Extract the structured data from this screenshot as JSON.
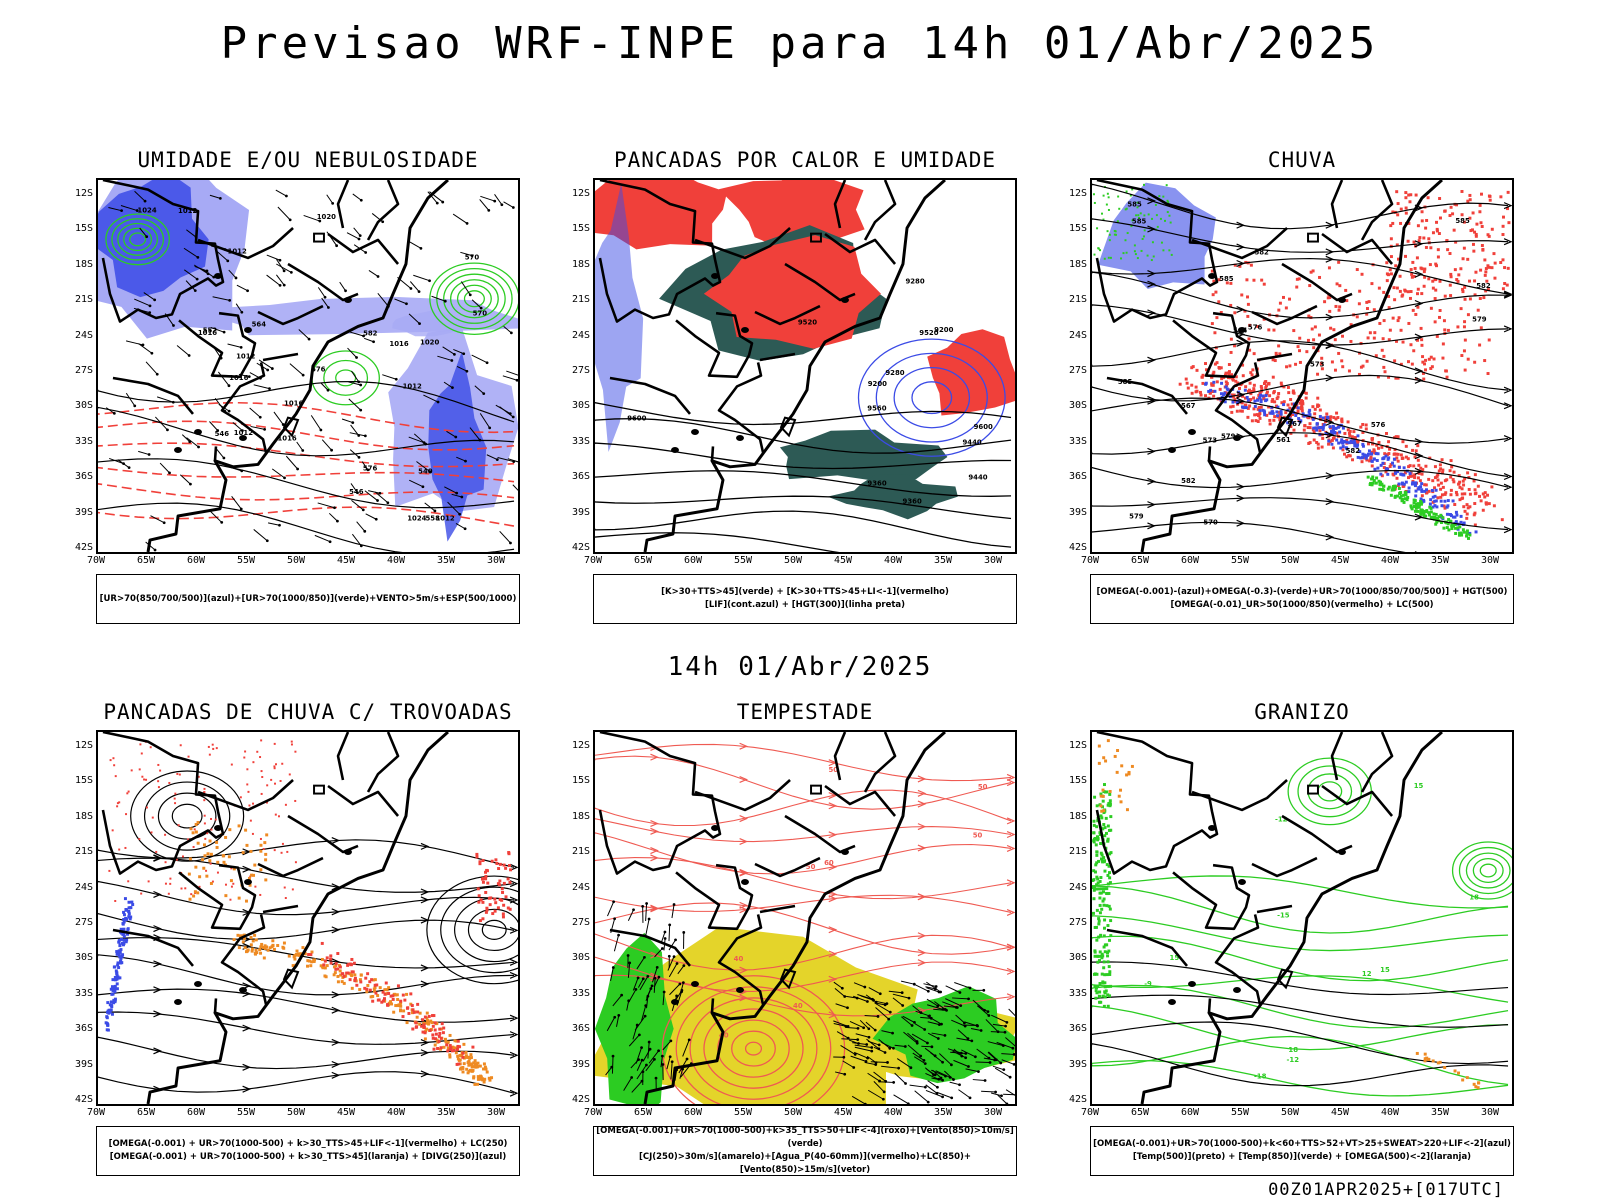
{
  "title": "Previsao WRF-INPE  para 14h 01/Abr/2025",
  "mid_title": "14h 01/Abr/2025",
  "footer": "00Z01APR2025+[017UTC]",
  "axes": {
    "lat_labels": [
      "12S",
      "15S",
      "18S",
      "21S",
      "24S",
      "27S",
      "30S",
      "33S",
      "36S",
      "39S",
      "42S"
    ],
    "lon_labels": [
      "70W",
      "65W",
      "60W",
      "55W",
      "50W",
      "45W",
      "40W",
      "35W",
      "30W"
    ]
  },
  "colors": {
    "red": "#f0403a",
    "blue": "#3b4be6",
    "light_blue": "#a7aaf5",
    "green": "#2ccc22",
    "dark_teal": "#2d5a55",
    "yellow": "#e4d42a",
    "orange": "#ee8a22",
    "contour_red": "#ef5a52"
  },
  "panels": [
    {
      "title": "UMIDADE E/OU NEBULOSIDADE",
      "legend": [
        "[UR>70(850/700/500)](azul)+[UR>70(1000/850)](verde)+VENTO>5m/s+ESP(500/1000)"
      ],
      "contour_labels": [
        "1016",
        "1016",
        "1012",
        "1012",
        "1012",
        "1012",
        "1016",
        "1016",
        "1012",
        "1016",
        "1020",
        "1020",
        "1024",
        "1024",
        "1012",
        "576",
        "576",
        "570",
        "570",
        "564",
        "558",
        "552",
        "546",
        "546",
        "540",
        "582"
      ]
    },
    {
      "title": "PANCADAS POR CALOR E UMIDADE",
      "legend": [
        "[K>30+TTS>45](verde) + [K>30+TTS>45+LI<-1](vermelho)",
        "[LIF](cont.azul) + [HGT(300)](linha preta)"
      ],
      "contour_labels": [
        "9560",
        "9600",
        "9520",
        "9440",
        "9360",
        "9280",
        "9200",
        "9520",
        "9440",
        "9360",
        "9280",
        "9200",
        "9600"
      ]
    },
    {
      "title": "CHUVA",
      "legend": [
        "[OMEGA(-0.001)-(azul)+OMEGA(-0.3)-(verde)+UR>70(1000/850/700/500)] + HGT(500)",
        "[OMEGA(-0.01)_UR>50(1000/850)(vermelho) + LC(500)"
      ],
      "contour_labels": [
        "585",
        "585",
        "585",
        "585",
        "582",
        "582",
        "582",
        "579",
        "579",
        "576",
        "573",
        "573",
        "570",
        "567",
        "567",
        "564",
        "561",
        "582",
        "585",
        "576",
        "579"
      ]
    },
    {
      "title": "PANCADAS DE CHUVA C/ TROVOADAS",
      "legend": [
        "[OMEGA(-0.001) + UR>70(1000-500) + k>30_TTS>45+LIF<-1](vermelho) + LC(250)",
        "[OMEGA(-0.001) + UR>70(1000-500) + k>30_TTS>45](laranja) + [DIVG(250)](azul)"
      ],
      "contour_labels": []
    },
    {
      "title": "TEMPESTADE",
      "legend": [
        "[OMEGA(-0.001)+UR>70(1000-500)+k>35_TTS>50+LIF<-4](roxo)+[Vento(850)>10m/s](verde)",
        "[CJ(250)>30m/s](amarelo)+[Agua_P(40-60mm)](vermelho)+LC(850)+[Vento(850)>15m/s](vetor)"
      ],
      "contour_labels": [
        "40",
        "50",
        "50",
        "60",
        "50",
        "40",
        "50",
        "40"
      ]
    },
    {
      "title": "GRANIZO",
      "legend": [
        "[OMEGA(-0.001)+UR>70(1000-500)+k<60+TTS>52+VT>25+SWEAT>220+LIF<-2](azul)",
        "[Temp(500)](preto) + [Temp(850)](verde) + [OMEGA(500)<-2](laranja)"
      ],
      "contour_labels": [
        "-12",
        "-15",
        "-18",
        "-12",
        "-9",
        "15",
        "15",
        "18",
        "15",
        "12",
        "18"
      ]
    }
  ]
}
